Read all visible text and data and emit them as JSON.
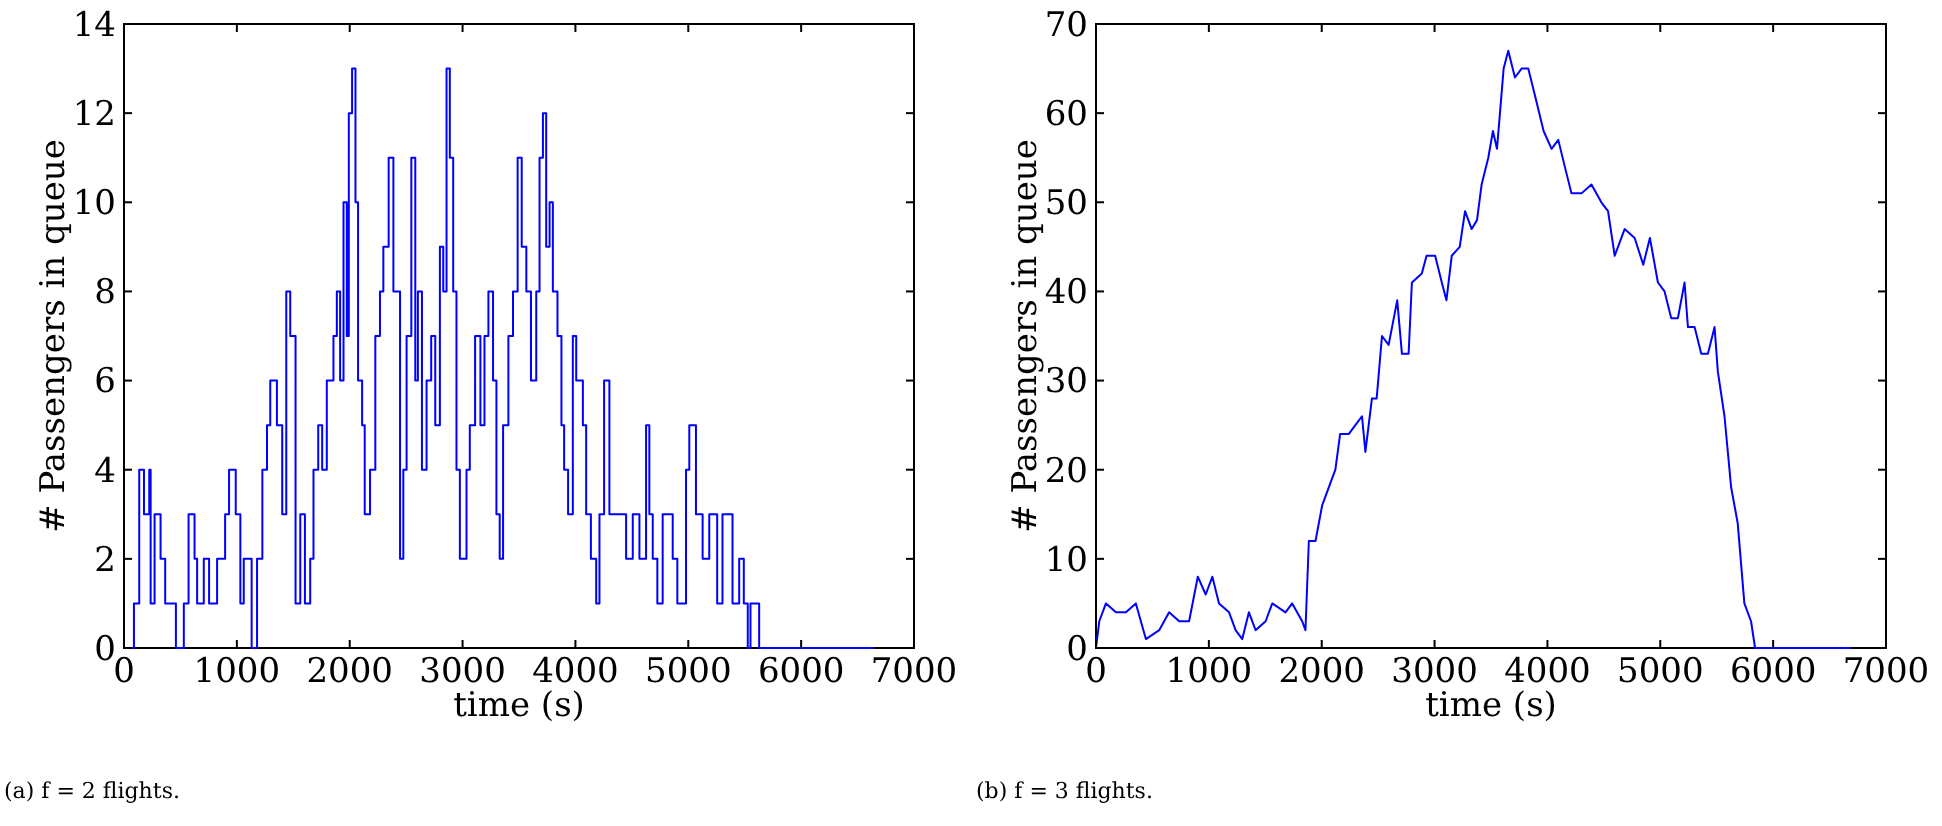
{
  "chart_data": [
    {
      "type": "step",
      "xlabel": "time (s)",
      "ylabel": "# Passengers in queue",
      "annotations": [
        "(a) f = 2 flights."
      ],
      "xlim": [
        0,
        7000
      ],
      "ylim": [
        0,
        14
      ],
      "xticks": [
        0,
        1000,
        2000,
        3000,
        4000,
        5000,
        6000,
        7000
      ],
      "yticks": [
        0,
        2,
        4,
        6,
        8,
        10,
        12,
        14
      ],
      "grid": false,
      "series": [
        {
          "color": "#0000ff",
          "x": [
            0,
            88,
            135,
            177,
            224,
            236,
            271,
            324,
            365,
            460,
            530,
            572,
            625,
            648,
            707,
            754,
            825,
            896,
            931,
            990,
            1031,
            1061,
            1131,
            1179,
            1226,
            1267,
            1296,
            1355,
            1402,
            1438,
            1473,
            1520,
            1562,
            1603,
            1650,
            1679,
            1721,
            1756,
            1797,
            1856,
            1886,
            1915,
            1945,
            1974,
            1992,
            2021,
            2051,
            2074,
            2110,
            2133,
            2180,
            2227,
            2268,
            2298,
            2345,
            2387,
            2446,
            2475,
            2504,
            2546,
            2581,
            2604,
            2640,
            2681,
            2722,
            2758,
            2799,
            2829,
            2858,
            2887,
            2917,
            2946,
            2976,
            3035,
            3064,
            3111,
            3158,
            3194,
            3229,
            3270,
            3300,
            3329,
            3359,
            3406,
            3447,
            3488,
            3524,
            3565,
            3606,
            3653,
            3682,
            3712,
            3741,
            3771,
            3800,
            3841,
            3876,
            3900,
            3935,
            3977,
            4007,
            4066,
            4095,
            4137,
            4184,
            4213,
            4254,
            4301,
            4390,
            4449,
            4508,
            4567,
            4626,
            4655,
            4685,
            4726,
            4773,
            4862,
            4903,
            4980,
            5009,
            5068,
            5127,
            5186,
            5256,
            5303,
            5392,
            5451,
            5492,
            5527,
            5551,
            5628,
            6647
          ],
          "values": [
            0,
            1,
            4,
            3,
            4,
            1,
            3,
            2,
            1,
            0,
            1,
            3,
            2,
            1,
            2,
            1,
            2,
            3,
            4,
            3,
            1,
            2,
            0,
            2,
            4,
            5,
            6,
            5,
            3,
            8,
            7,
            1,
            3,
            1,
            2,
            4,
            5,
            4,
            6,
            7,
            8,
            6,
            10,
            7,
            12,
            13,
            10,
            6,
            5,
            3,
            4,
            7,
            8,
            9,
            11,
            8,
            2,
            4,
            7,
            11,
            6,
            8,
            4,
            6,
            7,
            5,
            9,
            8,
            13,
            11,
            8,
            4,
            2,
            4,
            5,
            7,
            5,
            7,
            8,
            6,
            3,
            2,
            5,
            7,
            8,
            11,
            9,
            8,
            6,
            8,
            11,
            12,
            9,
            10,
            8,
            7,
            5,
            4,
            3,
            7,
            6,
            5,
            3,
            2,
            1,
            3,
            6,
            3,
            3,
            2,
            3,
            2,
            5,
            3,
            2,
            1,
            3,
            2,
            1,
            4,
            5,
            3,
            2,
            3,
            1,
            3,
            1,
            2,
            1,
            0,
            1,
            0,
            0
          ]
        }
      ]
    },
    {
      "type": "line",
      "xlabel": "time (s)",
      "ylabel": "# Passengers in queue",
      "annotations": [
        "(b) f = 3 flights."
      ],
      "xlim": [
        0,
        7000
      ],
      "ylim": [
        0,
        70
      ],
      "xticks": [
        0,
        1000,
        2000,
        3000,
        4000,
        5000,
        6000,
        7000
      ],
      "yticks": [
        0,
        10,
        20,
        30,
        40,
        50,
        60,
        70
      ],
      "grid": false,
      "series": [
        {
          "color": "#0000ff",
          "x": [
            0,
            29,
            88,
            177,
            265,
            353,
            442,
            560,
            648,
            737,
            825,
            902,
            972,
            1031,
            1090,
            1179,
            1237,
            1296,
            1355,
            1414,
            1503,
            1562,
            1679,
            1738,
            1827,
            1856,
            1886,
            1945,
            2004,
            2062,
            2121,
            2163,
            2239,
            2298,
            2357,
            2387,
            2445,
            2487,
            2534,
            2593,
            2669,
            2711,
            2770,
            2799,
            2887,
            2929,
            3005,
            3064,
            3105,
            3152,
            3223,
            3270,
            3329,
            3376,
            3417,
            3476,
            3517,
            3553,
            3612,
            3653,
            3712,
            3771,
            3830,
            3889,
            3966,
            4037,
            4096,
            4154,
            4213,
            4302,
            4390,
            4478,
            4537,
            4596,
            4684,
            4773,
            4849,
            4908,
            4979,
            5038,
            5097,
            5156,
            5215,
            5245,
            5304,
            5363,
            5422,
            5481,
            5510,
            5569,
            5628,
            5686,
            5745,
            5804,
            5840,
            6688
          ],
          "values": [
            0,
            3,
            5,
            4,
            4,
            5,
            1,
            2,
            4,
            3,
            3,
            8,
            6,
            8,
            5,
            4,
            2,
            1,
            4,
            2,
            3,
            5,
            4,
            5,
            3,
            2,
            12,
            12,
            16,
            18,
            20,
            24,
            24,
            25,
            26,
            22,
            28,
            28,
            35,
            34,
            39,
            33,
            33,
            41,
            42,
            44,
            44,
            41,
            39,
            44,
            45,
            49,
            47,
            48,
            52,
            55,
            58,
            56,
            65,
            67,
            64,
            65,
            65,
            62,
            58,
            56,
            57,
            54,
            51,
            51,
            52,
            50,
            49,
            44,
            47,
            46,
            43,
            46,
            41,
            40,
            37,
            37,
            41,
            36,
            36,
            33,
            33,
            36,
            31,
            26,
            18,
            14,
            5,
            3,
            0,
            0
          ]
        }
      ]
    }
  ]
}
